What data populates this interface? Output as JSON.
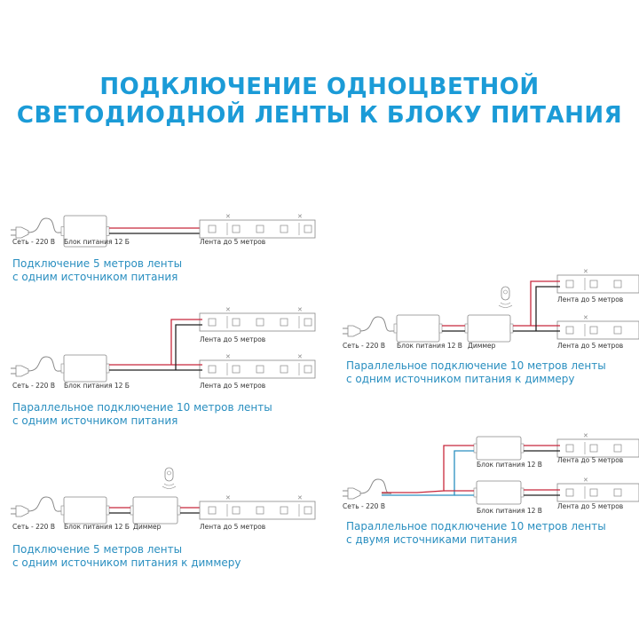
{
  "title": {
    "line1": "ПОДКЛЮЧЕНИЕ ОДНОЦВЕТНОЙ",
    "line2": "СВЕТОДИОДНОЙ ЛЕНТЫ К БЛОКУ ПИТАНИЯ"
  },
  "colors": {
    "accent": "#1b9bd7",
    "caption": "#2a8fc0",
    "wire_positive": "#c8283c",
    "wire_negative": "#222222",
    "wire_neutral": "#2a8fc0"
  },
  "diagrams": [
    {
      "mains": "Сеть - 220 В",
      "psu": "Блок питания 12 Б",
      "strip": "Лента до 5 метров",
      "caption1": "Подключение 5 метров ленты",
      "caption2": "с одним источником питания"
    },
    {
      "mains": "Сеть - 220 В",
      "psu": "Блок питания 12 Б",
      "strip1": "Лента до 5 метров",
      "strip2": "Лента до 5 метров",
      "caption1": "Параллельное подключение 10 метров ленты",
      "caption2": "с одним источником питания"
    },
    {
      "mains": "Сеть - 220 В",
      "psu": "Блок питания 12 Б",
      "dimmer": "Диммер",
      "strip": "Лента до 5 метров",
      "caption1": "Подключение 5 метров ленты",
      "caption2": "с одним источником питания к диммеру"
    },
    {
      "mains": "Сеть - 220 В",
      "psu": "Блок питания 12 В",
      "dimmer": "Диммер",
      "strip1": "Лента до 5 метров",
      "strip2": "Лента до 5 метров",
      "caption1": "Параллельное подключение 10 метров ленты",
      "caption2": "с одним источником питания к диммеру"
    },
    {
      "mains": "Сеть - 220 В",
      "psu1": "Блок питания 12 В",
      "psu2": "Блок питания 12 В",
      "strip1": "Лента до 5 метров",
      "strip2": "Лента до 5 метров",
      "caption1": "Параллельное подключение 10 метров ленты",
      "caption2": "с двумя источниками питания"
    }
  ]
}
